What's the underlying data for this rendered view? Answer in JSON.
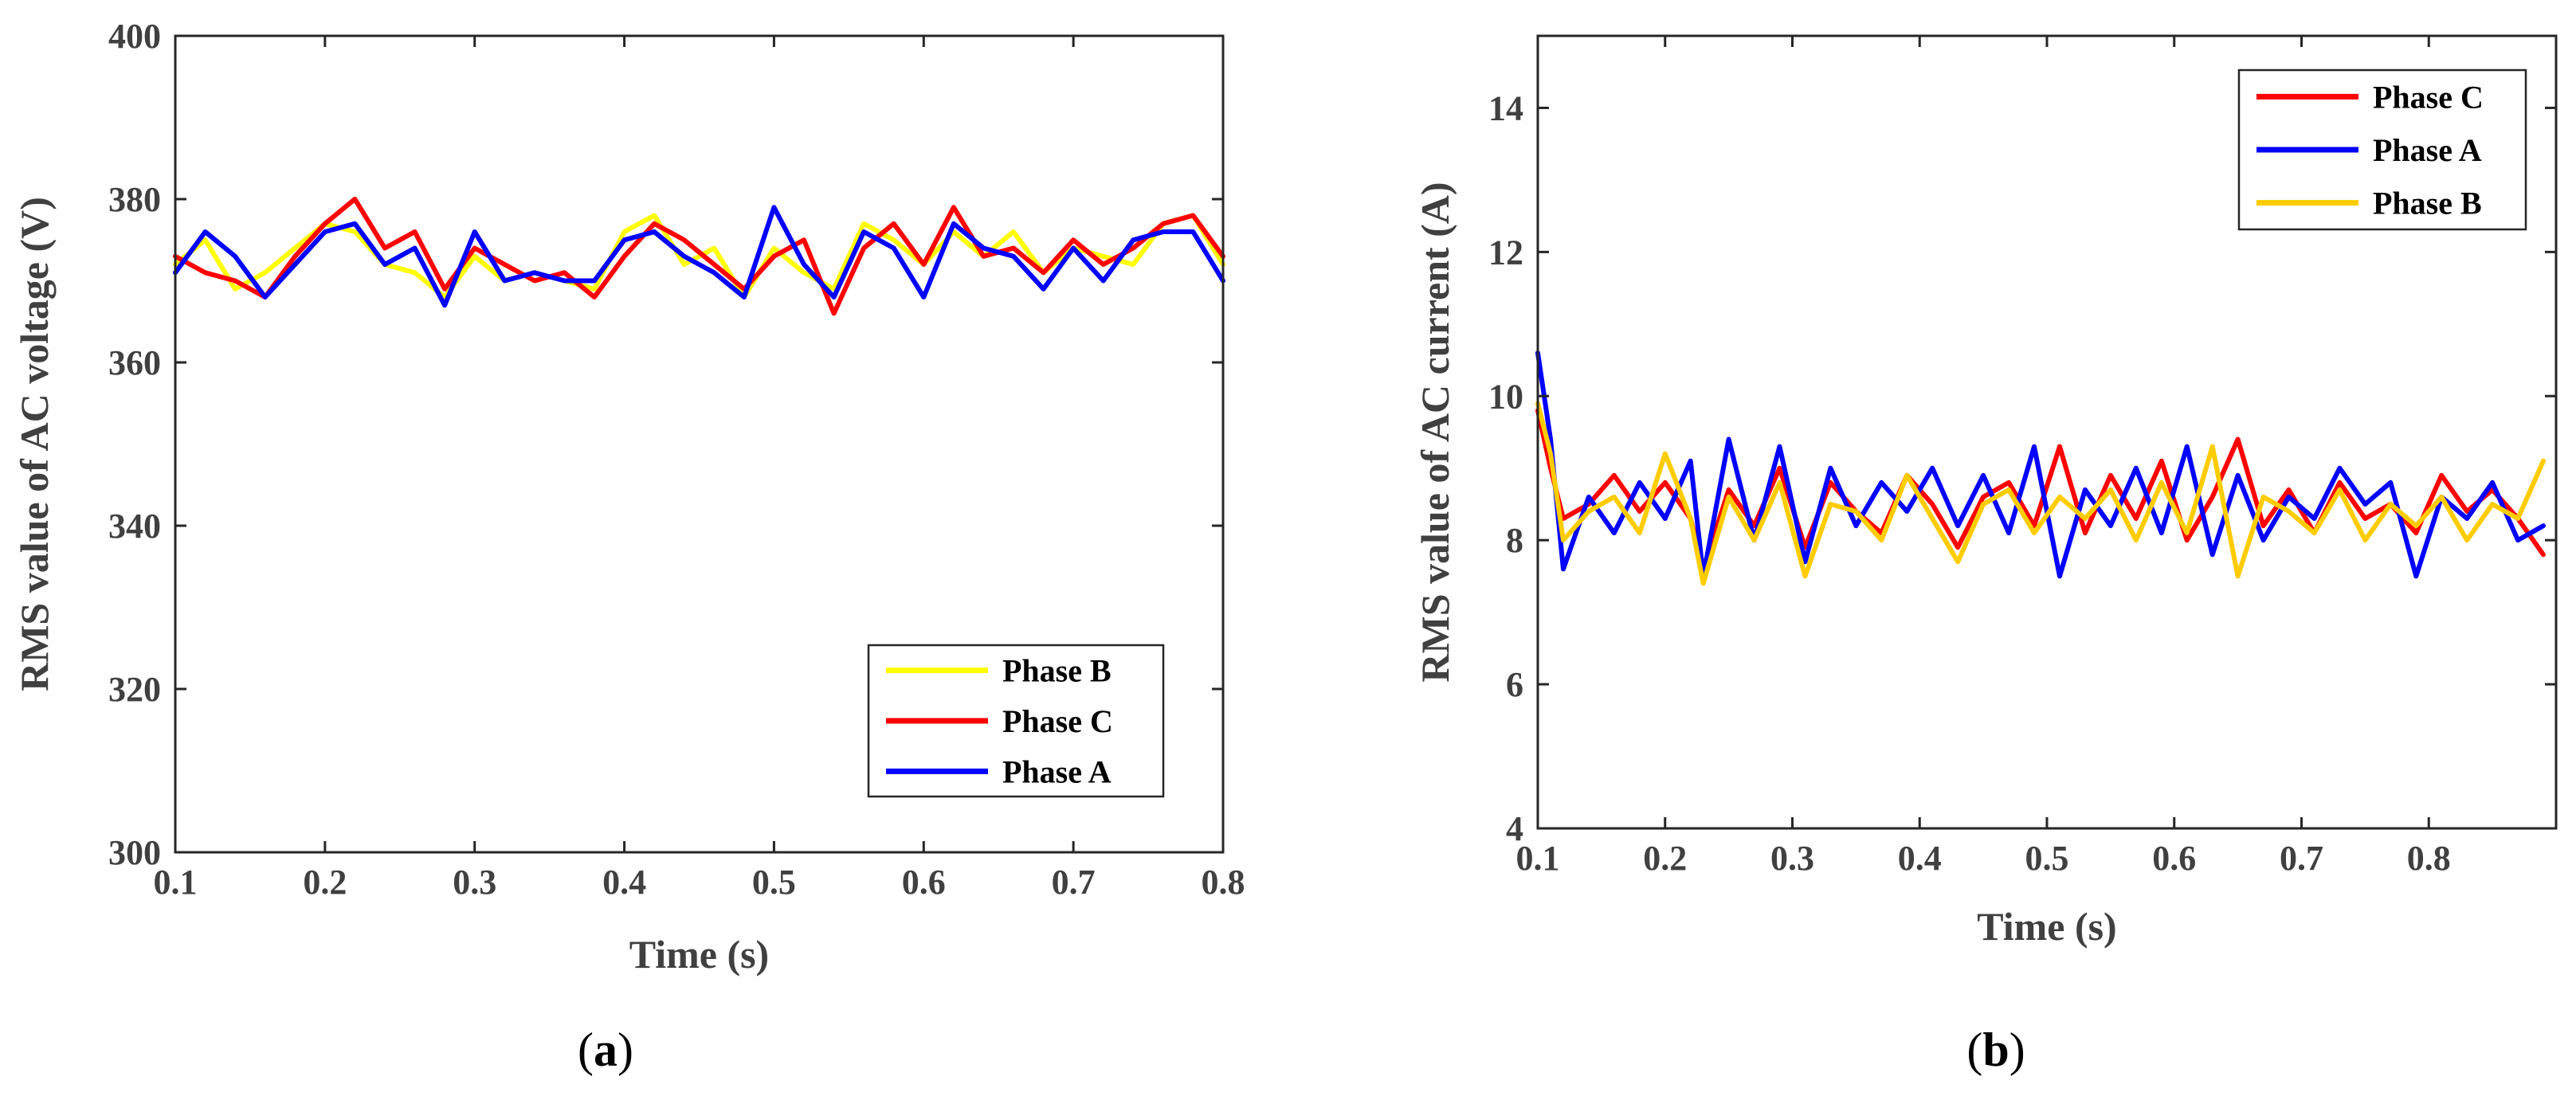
{
  "chart_data": [
    {
      "type": "line",
      "panel_label": "a",
      "xlabel": "Time (s)",
      "ylabel": "RMS value of AC voltage (V)",
      "xlim": [
        0.1,
        0.8
      ],
      "ylim": [
        300,
        400
      ],
      "xticks": [
        "0.1",
        "0.2",
        "0.3",
        "0.4",
        "0.5",
        "0.6",
        "0.7",
        "0.8"
      ],
      "yticks": [
        "300",
        "320",
        "340",
        "360",
        "380",
        "400"
      ],
      "legend_position": "bottom-right",
      "x": [
        0.1,
        0.12,
        0.14,
        0.16,
        0.18,
        0.2,
        0.22,
        0.24,
        0.26,
        0.28,
        0.3,
        0.32,
        0.34,
        0.36,
        0.38,
        0.4,
        0.42,
        0.44,
        0.46,
        0.48,
        0.5,
        0.52,
        0.54,
        0.56,
        0.58,
        0.6,
        0.62,
        0.64,
        0.66,
        0.68,
        0.7,
        0.72,
        0.74,
        0.76,
        0.78,
        0.8
      ],
      "series": [
        {
          "name": "Phase B",
          "color": "#ffff00",
          "values": [
            372,
            375,
            369,
            371,
            374,
            377,
            376,
            372,
            371,
            368,
            373,
            370,
            371,
            370,
            369,
            376,
            378,
            372,
            374,
            368,
            374,
            371,
            369,
            377,
            375,
            372,
            376,
            373,
            376,
            371,
            374,
            373,
            372,
            377,
            378,
            372
          ]
        },
        {
          "name": "Phase C",
          "color": "#ff0000",
          "values": [
            373,
            371,
            370,
            368,
            373,
            377,
            380,
            374,
            376,
            369,
            374,
            372,
            370,
            371,
            368,
            373,
            377,
            375,
            372,
            369,
            373,
            375,
            366,
            374,
            377,
            372,
            379,
            373,
            374,
            371,
            375,
            372,
            374,
            377,
            378,
            373
          ]
        },
        {
          "name": "Phase A",
          "color": "#0000ff",
          "values": [
            371,
            376,
            373,
            368,
            372,
            376,
            377,
            372,
            374,
            367,
            376,
            370,
            371,
            370,
            370,
            375,
            376,
            373,
            371,
            368,
            379,
            372,
            368,
            376,
            374,
            368,
            377,
            374,
            373,
            369,
            374,
            370,
            375,
            376,
            376,
            370
          ]
        }
      ]
    },
    {
      "type": "line",
      "panel_label": "b",
      "xlabel": "Time (s)",
      "ylabel": "RMS value of AC current (A)",
      "xlim": [
        0.1,
        0.9
      ],
      "ylim": [
        4,
        15
      ],
      "xticks": [
        "0.1",
        "0.2",
        "0.3",
        "0.4",
        "0.5",
        "0.6",
        "0.7",
        "0.8"
      ],
      "yticks": [
        "4",
        "6",
        "8",
        "10",
        "12",
        "14"
      ],
      "legend_position": "top-right",
      "x": [
        0.1,
        0.11,
        0.12,
        0.14,
        0.16,
        0.18,
        0.2,
        0.22,
        0.23,
        0.25,
        0.27,
        0.29,
        0.31,
        0.33,
        0.35,
        0.37,
        0.39,
        0.41,
        0.43,
        0.45,
        0.47,
        0.49,
        0.51,
        0.53,
        0.55,
        0.57,
        0.59,
        0.61,
        0.63,
        0.65,
        0.67,
        0.69,
        0.71,
        0.73,
        0.75,
        0.77,
        0.79,
        0.81,
        0.83,
        0.85,
        0.87,
        0.89
      ],
      "series": [
        {
          "name": "Phase C",
          "color": "#ff0000",
          "values": [
            9.8,
            9.0,
            8.3,
            8.5,
            8.9,
            8.4,
            8.8,
            8.3,
            7.6,
            8.7,
            8.2,
            9.0,
            7.9,
            8.8,
            8.4,
            8.1,
            8.9,
            8.5,
            7.9,
            8.6,
            8.8,
            8.2,
            9.3,
            8.1,
            8.9,
            8.3,
            9.1,
            8.0,
            8.6,
            9.4,
            8.2,
            8.7,
            8.1,
            8.8,
            8.3,
            8.5,
            8.1,
            8.9,
            8.4,
            8.7,
            8.3,
            7.8
          ]
        },
        {
          "name": "Phase A",
          "color": "#0000ff",
          "values": [
            10.6,
            9.4,
            7.6,
            8.6,
            8.1,
            8.8,
            8.3,
            9.1,
            7.5,
            9.4,
            8.0,
            9.3,
            7.7,
            9.0,
            8.2,
            8.8,
            8.4,
            9.0,
            8.2,
            8.9,
            8.1,
            9.3,
            7.5,
            8.7,
            8.2,
            9.0,
            8.1,
            9.3,
            7.8,
            8.9,
            8.0,
            8.6,
            8.3,
            9.0,
            8.5,
            8.8,
            7.5,
            8.6,
            8.3,
            8.8,
            8.0,
            8.2
          ]
        },
        {
          "name": "Phase B",
          "color": "#ffcc00",
          "values": [
            9.9,
            9.2,
            8.0,
            8.4,
            8.6,
            8.1,
            9.2,
            8.3,
            7.4,
            8.6,
            8.0,
            8.8,
            7.5,
            8.5,
            8.4,
            8.0,
            8.9,
            8.3,
            7.7,
            8.5,
            8.7,
            8.1,
            8.6,
            8.3,
            8.7,
            8.0,
            8.8,
            8.1,
            9.3,
            7.5,
            8.6,
            8.4,
            8.1,
            8.7,
            8.0,
            8.5,
            8.2,
            8.6,
            8.0,
            8.5,
            8.3,
            9.1
          ]
        }
      ]
    }
  ]
}
